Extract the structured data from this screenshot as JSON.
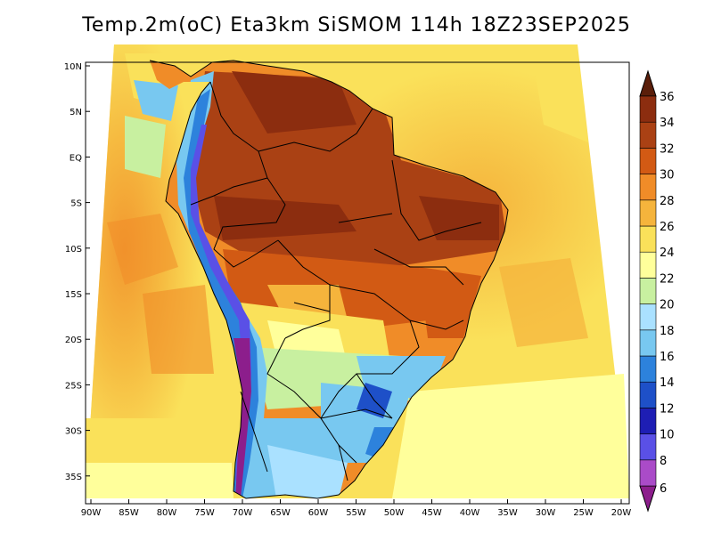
{
  "title": "Temp.2m(oC) Eta3km SiSMOM 114h 18Z23SEP2025",
  "map": {
    "lat_labels": [
      "10N",
      "5N",
      "EQ",
      "5S",
      "10S",
      "15S",
      "20S",
      "25S",
      "30S",
      "35S"
    ],
    "lon_labels": [
      "90W",
      "85W",
      "80W",
      "75W",
      "70W",
      "65W",
      "60W",
      "55W",
      "50W",
      "45W",
      "40W",
      "35W",
      "30W",
      "25W",
      "20W"
    ],
    "lat_range": [
      -38,
      11
    ],
    "lon_range": [
      -91,
      -20
    ],
    "projection": "conic"
  },
  "colorbar": {
    "levels": [
      "6",
      "8",
      "10",
      "12",
      "14",
      "16",
      "18",
      "20",
      "22",
      "24",
      "26",
      "28",
      "30",
      "32",
      "34",
      "36"
    ],
    "colors": [
      "#8c1e8c",
      "#aa4bc8",
      "#5a50e6",
      "#1e1eb4",
      "#1e50c8",
      "#2d82dc",
      "#78c8f0",
      "#aae1ff",
      "#c8f0a0",
      "#ffff9b",
      "#fae15a",
      "#f5b43c",
      "#f08c28",
      "#d25a14",
      "#aa4114",
      "#8c2d0f",
      "#5a1e0a"
    ]
  }
}
